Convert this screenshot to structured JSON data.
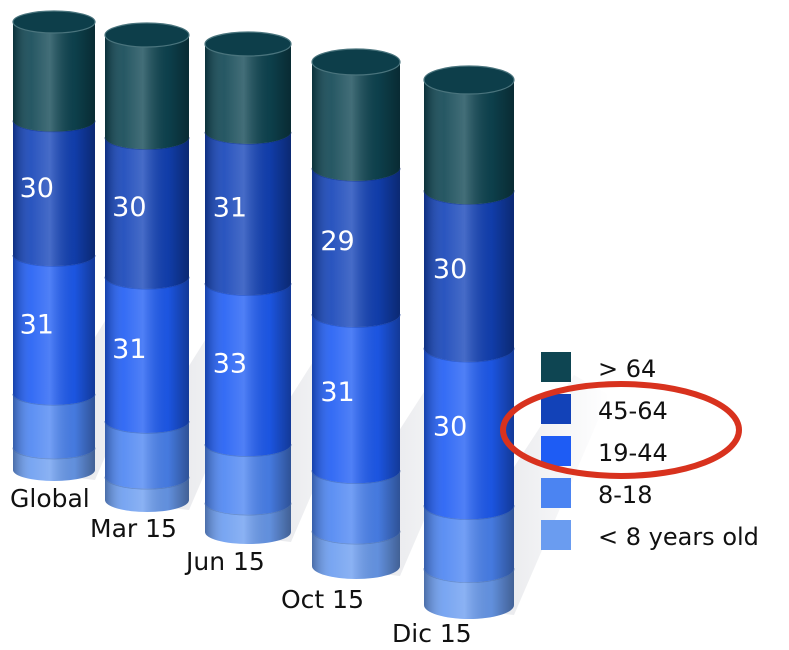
{
  "chart_data": {
    "type": "bar",
    "stacked": true,
    "style": "3d-cylinder",
    "categories": [
      "Global",
      "Mar 15",
      "Jun 15",
      "Oct 15",
      "Dic 15"
    ],
    "series": [
      {
        "name": "< 8 years old",
        "color": "#6A9CF0",
        "values": [
          5,
          5,
          6,
          7,
          7
        ]
      },
      {
        "name": "8-18",
        "color": "#4B84F2",
        "values": [
          12,
          12,
          12,
          12,
          12
        ]
      },
      {
        "name": "19-44",
        "color": "#1E5CF4",
        "values": [
          31,
          31,
          33,
          31,
          30
        ]
      },
      {
        "name": "45-64",
        "color": "#1242B8",
        "values": [
          30,
          30,
          31,
          29,
          30
        ]
      },
      {
        "name": "> 64",
        "color": "#0E4552",
        "values": [
          22,
          22,
          18,
          21,
          21
        ]
      }
    ],
    "data_labels": {
      "19-44": [
        "31",
        "31",
        "33",
        "31",
        "30"
      ],
      "45-64": [
        "30",
        "30",
        "31",
        "29",
        "30"
      ]
    },
    "title": "",
    "xlabel": "",
    "ylabel": "",
    "grid": false,
    "legend": "right",
    "annotation": {
      "type": "ellipse",
      "color": "#D8321E",
      "target": "45-64 and 19-44 legend entries"
    }
  }
}
